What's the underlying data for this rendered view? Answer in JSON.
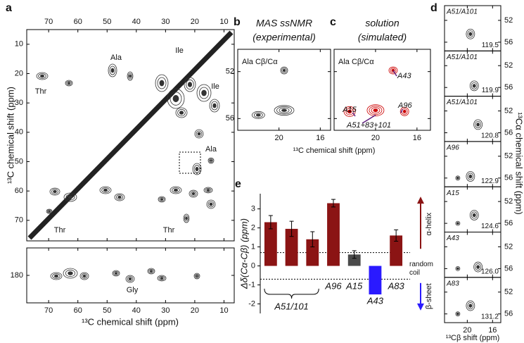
{
  "chart_data": [
    {
      "type": "contour",
      "panel_label": "a",
      "ylabel": "¹³C chemical shift (ppm)",
      "xlim": [
        77.5,
        6.5
      ],
      "xticks": [
        70,
        60,
        50,
        40,
        30,
        20,
        10
      ],
      "ylim": [
        5,
        77
      ],
      "yticks": [
        10,
        20,
        30,
        40,
        50,
        60,
        70
      ],
      "annotations": [
        "Ala",
        "Ile",
        "Ile",
        "Thr",
        "Ala",
        "Thr",
        "Thr"
      ]
    },
    {
      "type": "contour",
      "xlabel": "¹³C chemical shift (ppm)",
      "xlim": [
        77.5,
        6.5
      ],
      "xticks": [
        70,
        60,
        50,
        40,
        30,
        20,
        10
      ],
      "ylim": [
        172.5,
        187.5
      ],
      "yticks": [
        180
      ],
      "annotations": [
        "Gly"
      ]
    },
    {
      "type": "contour",
      "panel_label": "b",
      "title": "MAS ssNMR",
      "subtitle": "(experimental)",
      "xlim": [
        24,
        15
      ],
      "xticks": [
        20,
        16
      ],
      "ylim": [
        50.1,
        57
      ],
      "yticks": [
        52,
        56
      ],
      "annotations": [
        "Ala Cβ/Cα"
      ]
    },
    {
      "type": "contour",
      "panel_label": "c",
      "title": "solution",
      "subtitle": "(simulated)",
      "xlabel": "¹³C chemical shift (ppm)",
      "xlim": [
        24,
        14.7
      ],
      "xticks": [
        20,
        16
      ],
      "ylim": [
        50.1,
        57
      ],
      "yticks": [
        52,
        56
      ],
      "annotations": [
        "Ala Cβ/Cα",
        "A43",
        "A96",
        "A15",
        "A51+83+101"
      ]
    },
    {
      "type": "contour-stack",
      "panel_label": "d",
      "ylabel": "¹³Cα chemical shift (ppm)",
      "xlabel": "¹³Cβ shift (ppm)",
      "xlim": [
        23.6,
        14.7
      ],
      "xticks": [
        20,
        16
      ],
      "ylim": [
        49.3,
        57.6
      ],
      "yticks": [
        52,
        56
      ],
      "panels": [
        {
          "label": "A51/A101",
          "shift": "119.5"
        },
        {
          "label": "A51/A101",
          "shift": "119.9"
        },
        {
          "label": "A51/A101",
          "shift": "120.8"
        },
        {
          "label": "A96",
          "shift": "122.9"
        },
        {
          "label": "A15",
          "shift": "124.6"
        },
        {
          "label": "A43",
          "shift": "126.0"
        },
        {
          "label": "A83",
          "shift": "131.2"
        }
      ]
    },
    {
      "type": "bar",
      "panel_label": "e",
      "ylabel": "Δδ(Cα-Cβ) (ppm)",
      "categories": [
        null,
        null,
        null,
        "A96",
        "A15",
        "A43",
        "A83"
      ],
      "group_label": "A51/101",
      "values": [
        2.3,
        1.95,
        1.4,
        3.3,
        0.6,
        -1.5,
        1.6
      ],
      "errors": [
        0.35,
        0.4,
        0.4,
        0.2,
        0.2,
        null,
        0.3
      ],
      "colors": [
        "#8b1414",
        "#8b1414",
        "#8b1414",
        "#8b1414",
        "#4a4a4a",
        "#2a1aff",
        "#8b1414"
      ],
      "ylim": [
        -2.5,
        3.8
      ],
      "yticks": [
        -2,
        -1,
        0,
        1,
        2,
        3
      ],
      "thresholds": [
        0.7,
        -0.7
      ],
      "annotations": [
        "random",
        "coil",
        "α-helix",
        "β-sheet"
      ]
    }
  ]
}
